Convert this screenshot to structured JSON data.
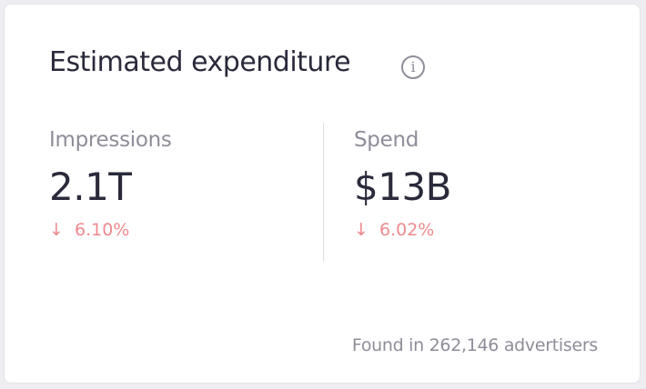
{
  "card": {
    "title": "Estimated expenditure",
    "info_icon": "info-circle-icon",
    "metrics": [
      {
        "label": "Impressions",
        "value": "2.1T",
        "change_icon": "arrow-down-icon",
        "change_arrow": "↓",
        "change": "6.10%"
      },
      {
        "label": "Spend",
        "value": "$13B",
        "change_icon": "arrow-down-icon",
        "change_arrow": "↓",
        "change": "6.02%"
      }
    ],
    "footer": "Found in 262,146 advertisers"
  },
  "colors": {
    "text": "#2a2a3c",
    "muted": "#8e8d99",
    "negative": "#ee8a8f"
  }
}
